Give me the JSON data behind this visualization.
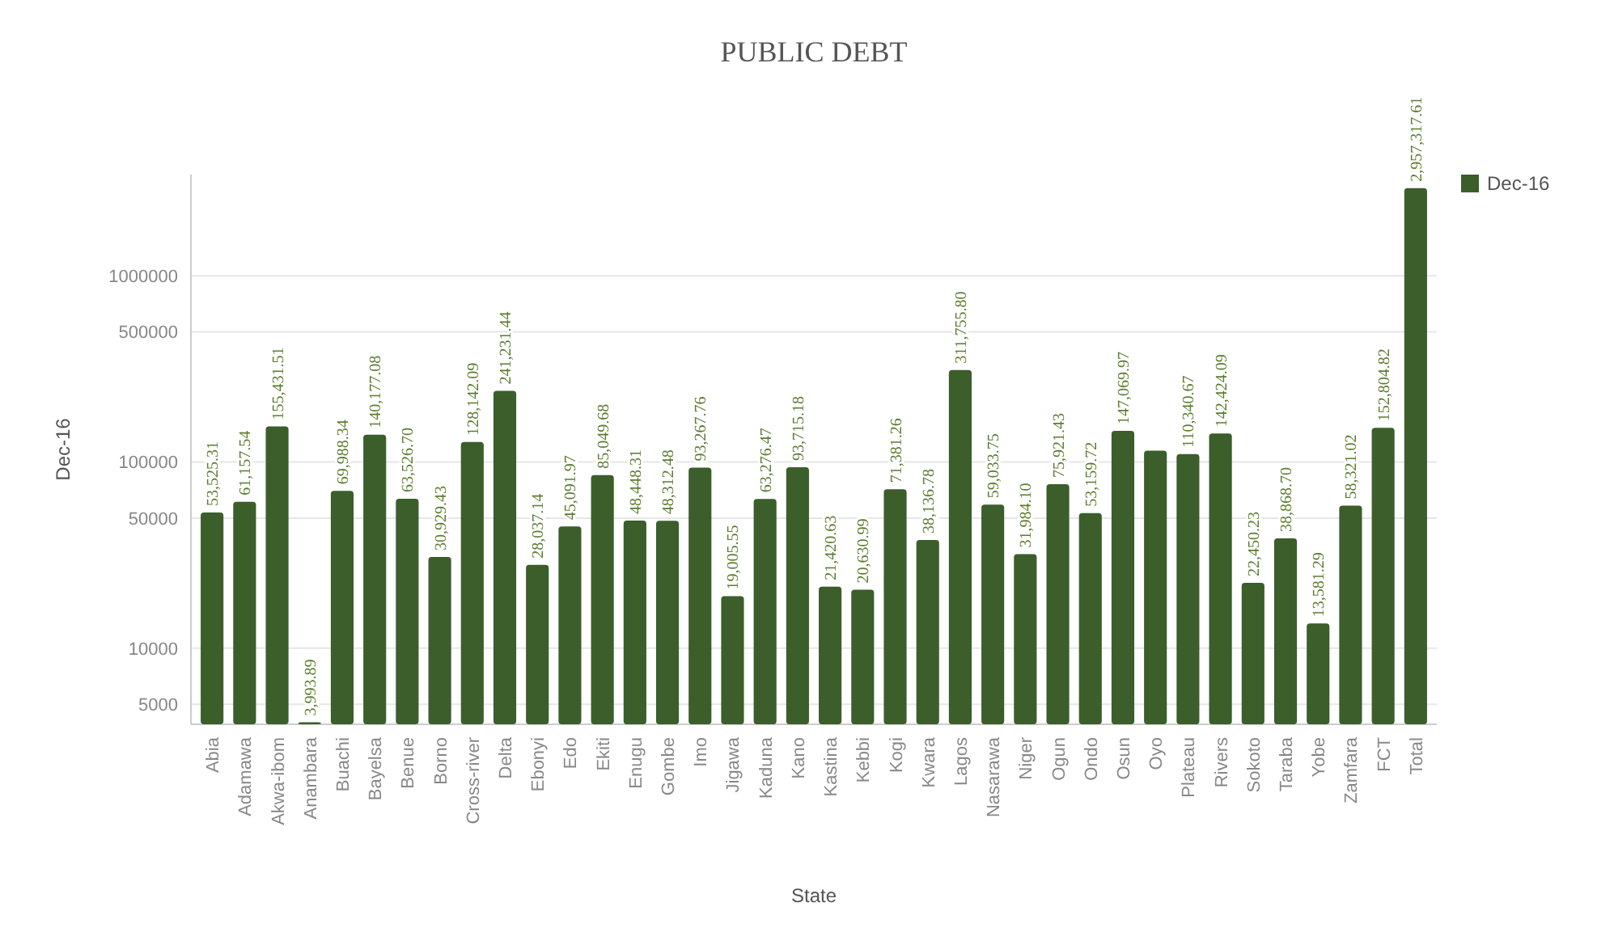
{
  "chart_data": {
    "type": "bar",
    "title": "PUBLIC DEBT",
    "xlabel": "State",
    "ylabel": "Dec-16",
    "categories": [
      "Abia",
      "Adamawa",
      "Akwa-ibom",
      "Anambara",
      "Buachi",
      "Bayelsa",
      "Benue",
      "Borno",
      "Cross-river",
      "Delta",
      "Ebonyi",
      "Edo",
      "Ekiti",
      "Enugu",
      "Gombe",
      "Imo",
      "Jigawa",
      "Kaduna",
      "Kano",
      "Kastina",
      "Kebbi",
      "Kogi",
      "Kwara",
      "Lagos",
      "Nasarawa",
      "Niger",
      "Ogun",
      "Ondo",
      "Osun",
      "Oyo",
      "Plateau",
      "Rivers",
      "Sokoto",
      "Taraba",
      "Yobe",
      "Zamfara",
      "FCT",
      "Total"
    ],
    "series": [
      {
        "name": "Dec-16",
        "color": "#3b5e2b",
        "values": [
          53525.31,
          61157.54,
          155431.51,
          3993.89,
          69988.34,
          140177.08,
          63526.7,
          30929.43,
          128142.09,
          241231.44,
          28037.14,
          45091.97,
          85049.68,
          48448.31,
          48312.48,
          93267.76,
          19005.55,
          63276.47,
          93715.18,
          21420.63,
          20630.99,
          71381.26,
          38136.78,
          311755.8,
          59033.75,
          31984.1,
          75921.43,
          53159.72,
          147069.97,
          115000,
          110340.67,
          142424.09,
          22450.23,
          38868.7,
          13581.29,
          58321.02,
          152804.82,
          2957317.61
        ],
        "value_labels": [
          "53,525.31",
          "61,157.54",
          "155,431.51",
          "3,993.89",
          "69,988.34",
          "140,177.08",
          "63,526.70",
          "30,929.43",
          "128,142.09",
          "241,231.44",
          "28,037.14",
          "45,091.97",
          "85,049.68",
          "48,448.31",
          "48,312.48",
          "93,267.76",
          "19,005.55",
          "63,276.47",
          "93,715.18",
          "21,420.63",
          "20,630.99",
          "71,381.26",
          "38,136.78",
          "311,755.80",
          "59,033.75",
          "31,984.10",
          "75,921.43",
          "53,159.72",
          "147,069.97",
          null,
          "110,340.67",
          "142,424.09",
          "22,450.23",
          "38,868.70",
          "13,581.29",
          "58,321.02",
          "152,804.82",
          "2,957,317.61"
        ]
      }
    ],
    "ylim": [
      3900,
      3500000
    ],
    "yticks": [
      5000,
      10000,
      50000,
      100000,
      500000,
      1000000
    ],
    "log": "y",
    "grid": "y",
    "legend": "top right"
  }
}
